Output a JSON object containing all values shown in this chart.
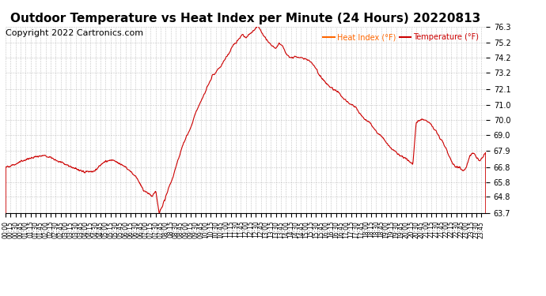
{
  "title": "Outdoor Temperature vs Heat Index per Minute (24 Hours) 20220813",
  "copyright_text": "Copyright 2022 Cartronics.com",
  "legend_heat": "Heat Index (°F)",
  "legend_temp": "Temperature (°F)",
  "y_min": 63.7,
  "y_max": 76.3,
  "y_ticks": [
    63.7,
    64.8,
    65.8,
    66.8,
    67.9,
    69.0,
    70.0,
    71.0,
    72.1,
    73.2,
    74.2,
    75.2,
    76.3
  ],
  "line_color": "#cc0000",
  "heat_index_color": "#ff6600",
  "temp_color": "#cc0000",
  "background_color": "#ffffff",
  "grid_color": "#aaaaaa",
  "title_fontsize": 11,
  "copyright_fontsize": 8,
  "x_tick_interval_minutes": 15,
  "total_minutes": 1440,
  "x_tick_labels_every": 15
}
